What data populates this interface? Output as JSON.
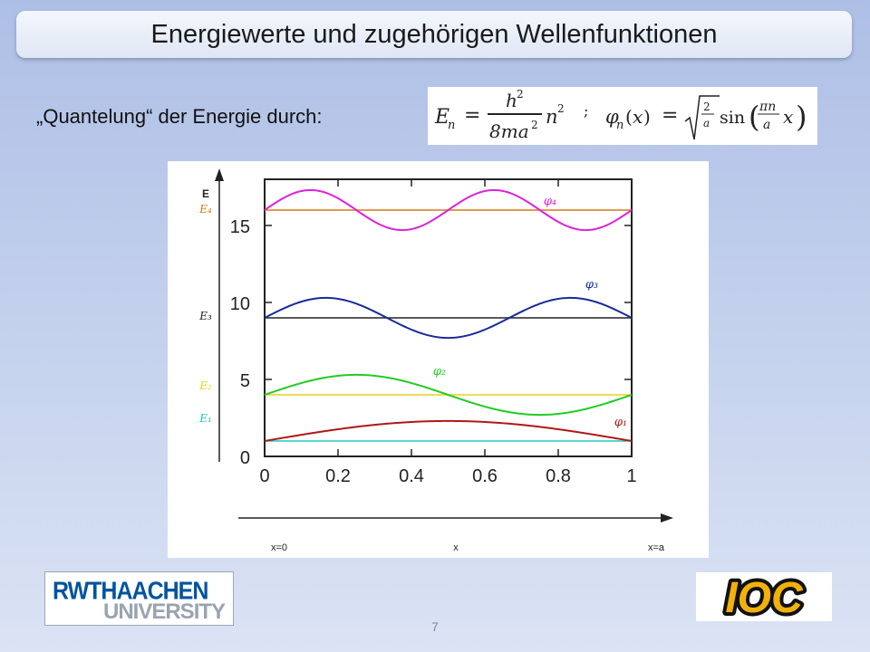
{
  "title": "Energiewerte und zugehörigen Wellenfunktionen",
  "subtitle": "„Quantelung“ der Energie durch:",
  "formula": {
    "energy": "E_n = h²/(8ma²) n²",
    "separator": ";",
    "wavefunction": "φ_n(x) = √(2/a) sin(πn/a · x)"
  },
  "chart_data": {
    "type": "line",
    "ylabel": "E",
    "xlim": [
      0,
      1
    ],
    "ylim": [
      0,
      18
    ],
    "x_ticks": [
      "0",
      "0.2",
      "0.4",
      "0.6",
      "0.8",
      "1"
    ],
    "y_ticks": [
      "0",
      "5",
      "10",
      "15"
    ],
    "bottom_axis_labels": {
      "left": "x=0",
      "middle": "x",
      "right": "x=a"
    },
    "energy_levels": [
      {
        "label": "E₁",
        "value": 1,
        "color": "#22c5c5"
      },
      {
        "label": "E₂",
        "value": 4,
        "color": "#e8d020"
      },
      {
        "label": "E₃",
        "value": 9,
        "color": "#222222"
      },
      {
        "label": "E₄",
        "value": 16,
        "color": "#d87818"
      }
    ],
    "series": [
      {
        "name": "φ₁",
        "n": 1,
        "baseline": 1,
        "amplitude": 1.3,
        "color": "#b01818"
      },
      {
        "name": "φ₂",
        "n": 2,
        "baseline": 4,
        "amplitude": 1.3,
        "color": "#22cc22"
      },
      {
        "name": "φ₃",
        "n": 3,
        "baseline": 9,
        "amplitude": 1.3,
        "color": "#1a2a9a"
      },
      {
        "name": "φ₄",
        "n": 4,
        "baseline": 16,
        "amplitude": 1.3,
        "color": "#dd22dd"
      }
    ]
  },
  "logos": {
    "rwth_top": "RWTHAACHEN",
    "rwth_bottom": "UNIVERSITY",
    "ioc": "IOC"
  },
  "page_number": "7"
}
